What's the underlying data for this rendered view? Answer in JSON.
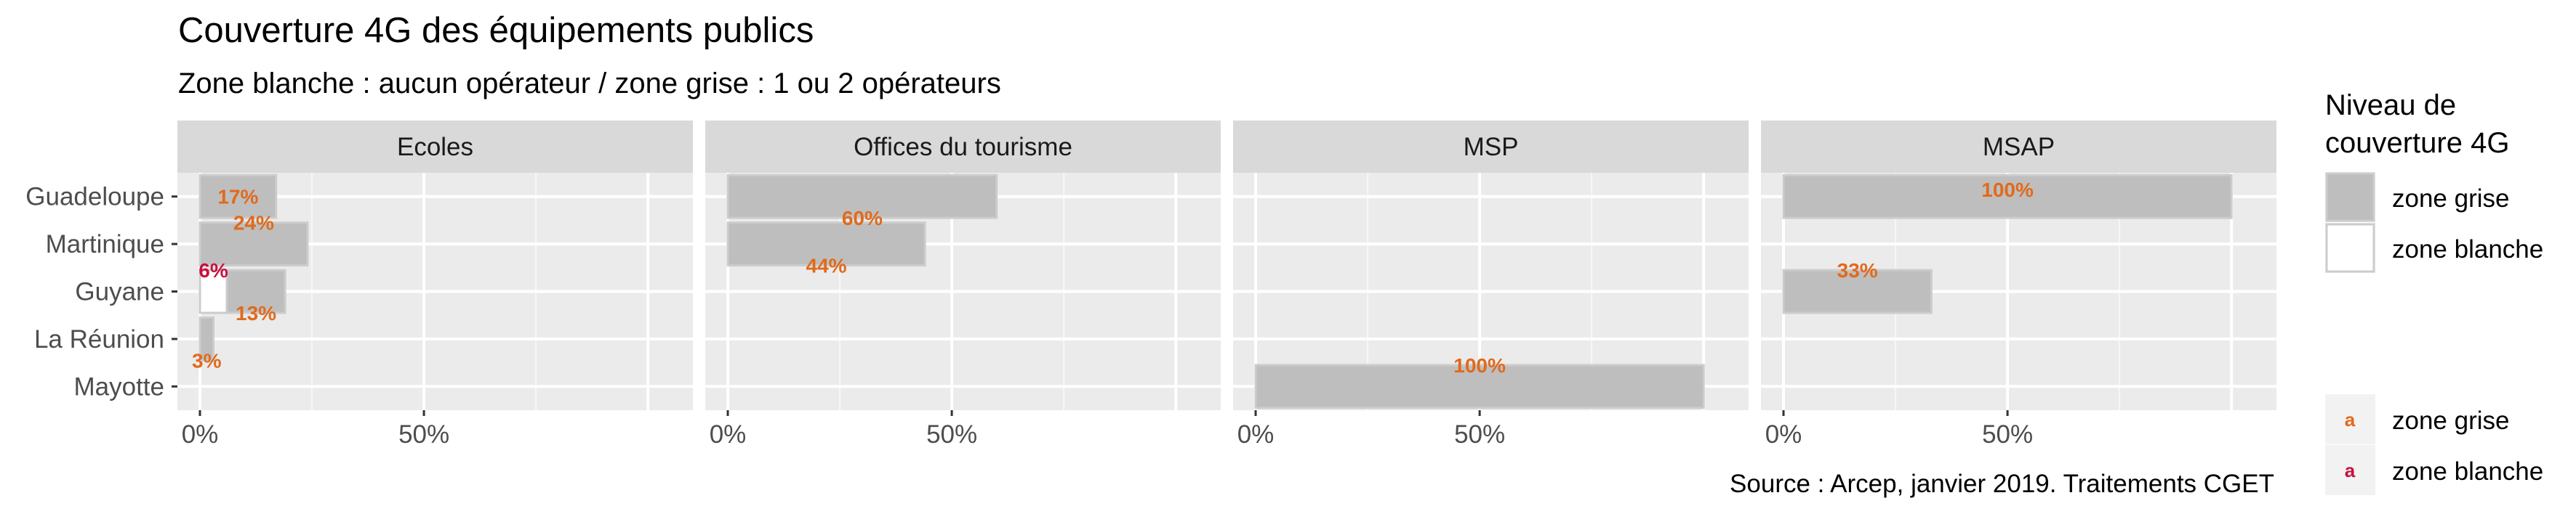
{
  "chart_data": {
    "type": "bar",
    "orientation": "horizontal",
    "title": "Couverture 4G des équipements publics",
    "subtitle": "Zone blanche : aucun opérateur / zone grise : 1 ou 2 opérateurs",
    "caption": "Source : Arcep, janvier 2019. Traitements CGET",
    "categories": [
      "Guadeloupe",
      "Martinique",
      "Guyane",
      "La Réunion",
      "Mayotte"
    ],
    "xlim": [
      0,
      1.05
    ],
    "x_ticks": [
      {
        "value": 0,
        "label": "0%"
      },
      {
        "value": 0.5,
        "label": "50%"
      }
    ],
    "grid": true,
    "legend_fill": {
      "title": "Niveau de couverture 4G",
      "title_lines": [
        "Niveau de",
        "couverture 4G"
      ],
      "entries": [
        {
          "label": "zone grise",
          "fill": "#bebebe"
        },
        {
          "label": "zone blanche",
          "fill": "#ffffff"
        }
      ]
    },
    "legend_text": {
      "symbol": "a",
      "entries": [
        {
          "label": "zone grise",
          "color": "#e06a1c"
        },
        {
          "label": "zone blanche",
          "color": "#c8103e"
        }
      ]
    },
    "facets": [
      {
        "name": "Ecoles",
        "bars": [
          {
            "category": "Guadeloupe",
            "zone": "zone grise",
            "start": 0,
            "end": 0.17
          },
          {
            "category": "Martinique",
            "zone": "zone grise",
            "start": 0,
            "end": 0.24
          },
          {
            "category": "Guyane",
            "zone": "zone blanche",
            "start": 0,
            "end": 0.06
          },
          {
            "category": "Guyane",
            "zone": "zone grise",
            "start": 0.06,
            "end": 0.19
          },
          {
            "category": "La Réunion",
            "zone": "zone grise",
            "start": 0,
            "end": 0.03
          }
        ],
        "labels": [
          {
            "category": "Guadeloupe",
            "zone": "zone grise",
            "text": "17%",
            "x": 0.085,
            "offset": 0
          },
          {
            "category": "Martinique",
            "zone": "zone grise",
            "text": "24%",
            "x": 0.12,
            "offset": -0.45
          },
          {
            "category": "Guyane",
            "zone": "zone blanche",
            "text": "6%",
            "x": 0.03,
            "offset": -0.45
          },
          {
            "category": "Guyane",
            "zone": "zone grise",
            "text": "13%",
            "x": 0.125,
            "offset": 0.45
          },
          {
            "category": "La Réunion",
            "zone": "zone grise",
            "text": "3%",
            "x": 0.015,
            "offset": 0.45
          }
        ]
      },
      {
        "name": "Offices du tourisme",
        "bars": [
          {
            "category": "Guadeloupe",
            "zone": "zone grise",
            "start": 0,
            "end": 0.6
          },
          {
            "category": "Martinique",
            "zone": "zone grise",
            "start": 0,
            "end": 0.44
          }
        ],
        "labels": [
          {
            "category": "Guadeloupe",
            "zone": "zone grise",
            "text": "60%",
            "x": 0.3,
            "offset": 0.45
          },
          {
            "category": "Martinique",
            "zone": "zone grise",
            "text": "44%",
            "x": 0.22,
            "offset": 0.45
          }
        ]
      },
      {
        "name": "MSP",
        "bars": [
          {
            "category": "Mayotte",
            "zone": "zone grise",
            "start": 0,
            "end": 1.0
          }
        ],
        "labels": [
          {
            "category": "Mayotte",
            "zone": "zone grise",
            "text": "100%",
            "x": 0.5,
            "offset": -0.45
          }
        ]
      },
      {
        "name": "MSAP",
        "bars": [
          {
            "category": "Guadeloupe",
            "zone": "zone grise",
            "start": 0,
            "end": 1.0
          },
          {
            "category": "Guyane",
            "zone": "zone grise",
            "start": 0,
            "end": 0.33
          }
        ],
        "labels": [
          {
            "category": "Guadeloupe",
            "zone": "zone grise",
            "text": "100%",
            "x": 0.5,
            "offset": -0.15
          },
          {
            "category": "Guyane",
            "zone": "zone grise",
            "text": "33%",
            "x": 0.165,
            "offset": -0.45
          }
        ]
      }
    ]
  }
}
